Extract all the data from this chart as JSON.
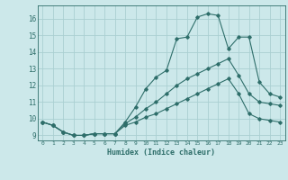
{
  "title": "",
  "xlabel": "Humidex (Indice chaleur)",
  "ylabel": "",
  "background_color": "#cce8ea",
  "grid_color": "#aacfd2",
  "line_color": "#2e6e6a",
  "xlim": [
    -0.5,
    23.5
  ],
  "ylim": [
    8.7,
    16.8
  ],
  "yticks": [
    9,
    10,
    11,
    12,
    13,
    14,
    15,
    16
  ],
  "xticks": [
    0,
    1,
    2,
    3,
    4,
    5,
    6,
    7,
    8,
    9,
    10,
    11,
    12,
    13,
    14,
    15,
    16,
    17,
    18,
    19,
    20,
    21,
    22,
    23
  ],
  "line1_x": [
    0,
    1,
    2,
    3,
    4,
    5,
    6,
    7,
    8,
    9,
    10,
    11,
    12,
    13,
    14,
    15,
    16,
    17,
    18,
    19,
    20,
    21,
    22,
    23
  ],
  "line1_y": [
    9.8,
    9.6,
    9.2,
    9.0,
    9.0,
    9.1,
    9.1,
    9.1,
    9.8,
    10.7,
    11.8,
    12.5,
    12.9,
    14.8,
    14.9,
    16.1,
    16.3,
    16.2,
    14.2,
    14.9,
    14.9,
    12.2,
    11.5,
    11.3
  ],
  "line2_x": [
    0,
    1,
    2,
    3,
    4,
    5,
    6,
    7,
    8,
    9,
    10,
    11,
    12,
    13,
    14,
    15,
    16,
    17,
    18,
    19,
    20,
    21,
    22,
    23
  ],
  "line2_y": [
    9.8,
    9.6,
    9.2,
    9.0,
    9.0,
    9.1,
    9.1,
    9.1,
    9.7,
    10.1,
    10.6,
    11.0,
    11.5,
    12.0,
    12.4,
    12.7,
    13.0,
    13.3,
    13.6,
    12.6,
    11.5,
    11.0,
    10.9,
    10.8
  ],
  "line3_x": [
    0,
    1,
    2,
    3,
    4,
    5,
    6,
    7,
    8,
    9,
    10,
    11,
    12,
    13,
    14,
    15,
    16,
    17,
    18,
    19,
    20,
    21,
    22,
    23
  ],
  "line3_y": [
    9.8,
    9.6,
    9.2,
    9.0,
    9.0,
    9.1,
    9.1,
    9.1,
    9.6,
    9.8,
    10.1,
    10.3,
    10.6,
    10.9,
    11.2,
    11.5,
    11.8,
    12.1,
    12.4,
    11.5,
    10.3,
    10.0,
    9.9,
    9.8
  ]
}
